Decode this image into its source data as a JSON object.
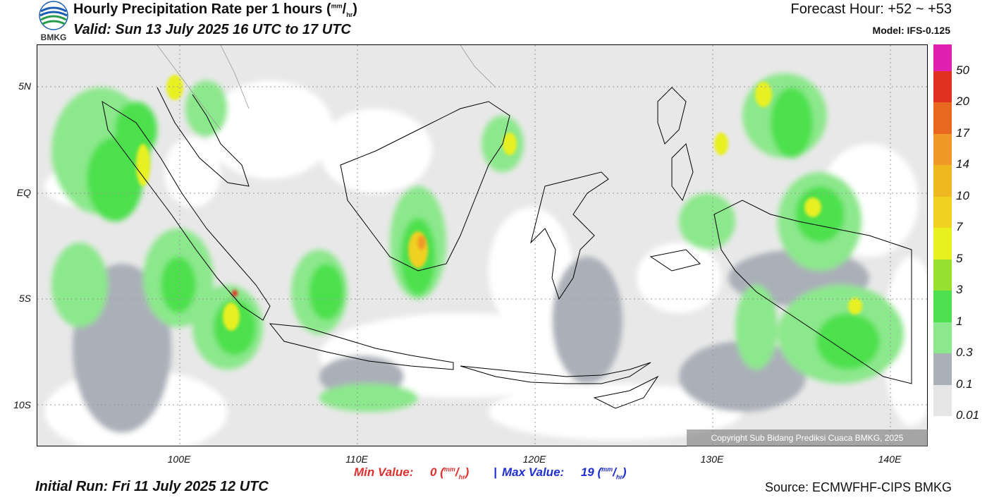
{
  "header": {
    "title_prefix": "Hourly Precipitation Rate per 1 hours (",
    "title_unit_top": "mm",
    "title_unit_sep": "/",
    "title_unit_bot": "hr",
    "title_suffix": ")",
    "valid": "Valid: Sun 13 July 2025 16 UTC to 17 UTC",
    "forecast_hour": "Forecast Hour: +52 ~ +53",
    "model": "Model: IFS-0.125",
    "logo_text": "BMKG"
  },
  "map": {
    "lat_labels": [
      "5N",
      "EQ",
      "5S",
      "10S"
    ],
    "lon_labels": [
      "100E",
      "110E",
      "120E",
      "130E",
      "140E"
    ],
    "copyright": "Copyright Sub Bidang Prediksi Cuaca BMKG, 2025"
  },
  "colorbar": {
    "levels": [
      "0.01",
      "0.1",
      "0.3",
      "1",
      "3",
      "5",
      "7",
      "10",
      "14",
      "17",
      "20",
      "50"
    ],
    "colors": [
      "#e6e6e6",
      "#aab0b8",
      "#8ce88c",
      "#4ee04e",
      "#98e030",
      "#e8f020",
      "#f0d020",
      "#f0b820",
      "#f09828",
      "#e86820",
      "#e03020",
      "#e020b0"
    ]
  },
  "footer": {
    "min_label": "Min Value:",
    "min_value": "0",
    "max_label": "Max Value:",
    "max_value": "19",
    "sep": "|",
    "initial_run": "Initial Run: Fri 11 July 2025 12 UTC",
    "source": "Source: ECMWFHF-CIPS BMKG"
  }
}
